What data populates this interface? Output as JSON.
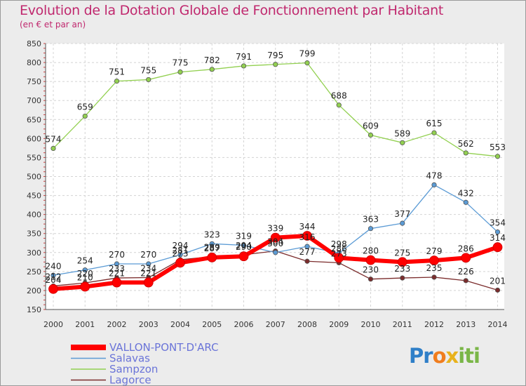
{
  "header": {
    "title": "Evolution de la Dotation Globale de Fonctionnement par Habitant",
    "subtitle": "(en € et par an)"
  },
  "logo": {
    "p1": "Pr",
    "p2": "o",
    "p3": "x",
    "p4": "iti"
  },
  "chart_data": {
    "type": "line",
    "title": "Evolution de la Dotation Globale de Fonctionnement par Habitant",
    "subtitle": "(en € et par an)",
    "xlabel": "",
    "ylabel": "",
    "x": [
      "2000",
      "2001",
      "2002",
      "2003",
      "2004",
      "2005",
      "2006",
      "2007",
      "2008",
      "2009",
      "2010",
      "2011",
      "2012",
      "2013",
      "2014"
    ],
    "ylim": [
      150,
      850
    ],
    "yticks": [
      150,
      200,
      250,
      300,
      350,
      400,
      450,
      500,
      550,
      600,
      650,
      700,
      750,
      800,
      850
    ],
    "grid": true,
    "legend": "bottom-left",
    "series": [
      {
        "name": "VALLON-PONT-D'ARC",
        "color": "#ff0000",
        "values": [
          204,
          210,
          221,
          221,
          273,
          287,
          290,
          339,
          344,
          286,
          280,
          275,
          279,
          286,
          314
        ]
      },
      {
        "name": "Salavas",
        "color": "#5b9bd5",
        "values": [
          240,
          254,
          270,
          270,
          294,
          323,
          319,
          300,
          316,
          298,
          363,
          377,
          478,
          432,
          354
        ]
      },
      {
        "name": "Sampzon",
        "color": "#92d050",
        "values": [
          574,
          659,
          751,
          755,
          775,
          782,
          791,
          795,
          799,
          688,
          609,
          589,
          615,
          562,
          553
        ]
      },
      {
        "name": "Lagorce",
        "color": "#7b2c2c",
        "values": [
          212,
          220,
          233,
          234,
          281,
          289,
          294,
          304,
          277,
          273,
          230,
          233,
          235,
          226,
          201
        ]
      }
    ]
  }
}
